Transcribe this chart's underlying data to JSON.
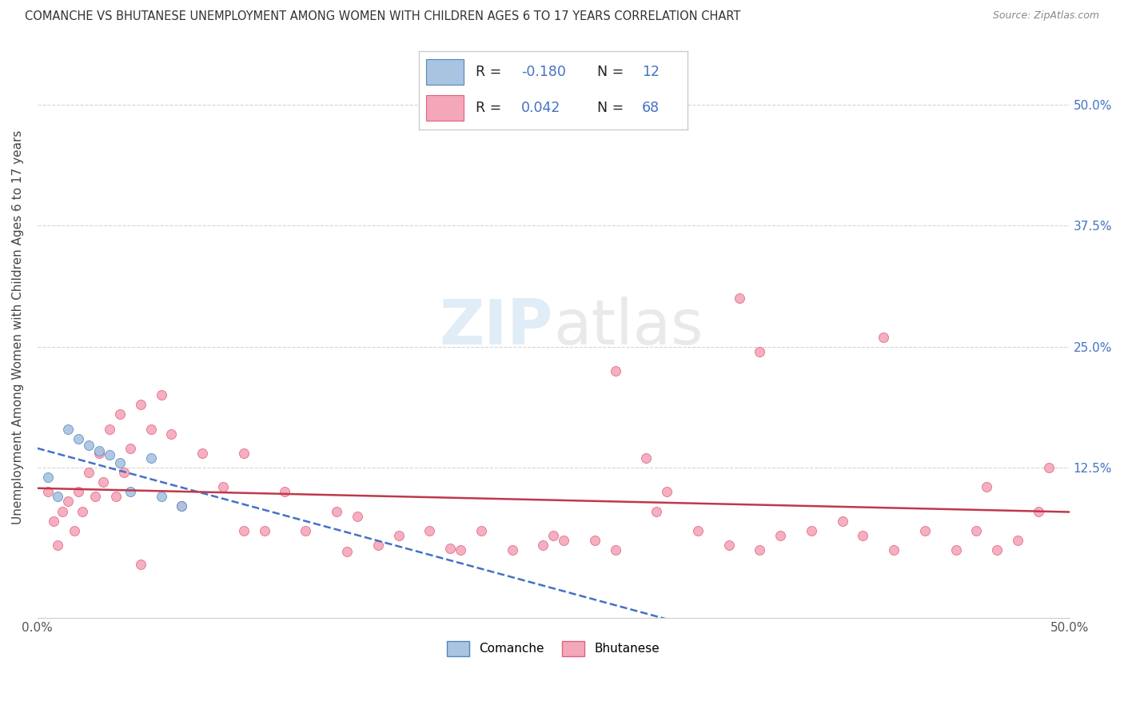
{
  "title": "COMANCHE VS BHUTANESE UNEMPLOYMENT AMONG WOMEN WITH CHILDREN AGES 6 TO 17 YEARS CORRELATION CHART",
  "source": "Source: ZipAtlas.com",
  "ylabel": "Unemployment Among Women with Children Ages 6 to 17 years",
  "xlim": [
    0.0,
    0.5
  ],
  "ylim": [
    -0.03,
    0.57
  ],
  "yticks_right": [
    0.125,
    0.25,
    0.375,
    0.5
  ],
  "ytick_right_labels": [
    "12.5%",
    "25.0%",
    "37.5%",
    "50.0%"
  ],
  "comanche_R": -0.18,
  "comanche_N": 12,
  "bhutanese_R": 0.042,
  "bhutanese_N": 68,
  "comanche_color": "#a8c4e0",
  "bhutanese_color": "#f4a7b9",
  "comanche_edge_color": "#5585c0",
  "bhutanese_edge_color": "#e06080",
  "comanche_line_color": "#4472c4",
  "bhutanese_line_color": "#c0384a",
  "axis_color": "#4472c4",
  "background_color": "#ffffff",
  "grid_color": "#d5d5d5",
  "watermark_zip": "ZIP",
  "watermark_atlas": "atlas",
  "dot_size": 75,
  "comanche_points_x": [
    0.005,
    0.01,
    0.015,
    0.02,
    0.025,
    0.03,
    0.035,
    0.04,
    0.045,
    0.055,
    0.06,
    0.07
  ],
  "comanche_points_y": [
    0.115,
    0.095,
    0.165,
    0.155,
    0.148,
    0.142,
    0.138,
    0.13,
    0.1,
    0.135,
    0.095,
    0.085
  ],
  "bhutanese_points_x": [
    0.005,
    0.008,
    0.01,
    0.012,
    0.015,
    0.018,
    0.02,
    0.022,
    0.025,
    0.028,
    0.03,
    0.032,
    0.035,
    0.038,
    0.04,
    0.042,
    0.045,
    0.05,
    0.055,
    0.06,
    0.065,
    0.07,
    0.08,
    0.09,
    0.1,
    0.11,
    0.12,
    0.13,
    0.145,
    0.155,
    0.165,
    0.175,
    0.19,
    0.205,
    0.215,
    0.23,
    0.245,
    0.255,
    0.27,
    0.28,
    0.295,
    0.305,
    0.32,
    0.335,
    0.35,
    0.36,
    0.375,
    0.39,
    0.4,
    0.415,
    0.43,
    0.445,
    0.455,
    0.465,
    0.475,
    0.485,
    0.35,
    0.28,
    0.34,
    0.41,
    0.46,
    0.49,
    0.3,
    0.25,
    0.2,
    0.15,
    0.1,
    0.05
  ],
  "bhutanese_points_y": [
    0.1,
    0.07,
    0.045,
    0.08,
    0.09,
    0.06,
    0.1,
    0.08,
    0.12,
    0.095,
    0.14,
    0.11,
    0.165,
    0.095,
    0.18,
    0.12,
    0.145,
    0.19,
    0.165,
    0.2,
    0.16,
    0.085,
    0.14,
    0.105,
    0.14,
    0.06,
    0.1,
    0.06,
    0.08,
    0.075,
    0.045,
    0.055,
    0.06,
    0.04,
    0.06,
    0.04,
    0.045,
    0.05,
    0.05,
    0.04,
    0.135,
    0.1,
    0.06,
    0.045,
    0.04,
    0.055,
    0.06,
    0.07,
    0.055,
    0.04,
    0.06,
    0.04,
    0.06,
    0.04,
    0.05,
    0.08,
    0.245,
    0.225,
    0.3,
    0.26,
    0.105,
    0.125,
    0.08,
    0.055,
    0.042,
    0.038,
    0.06,
    0.025
  ]
}
